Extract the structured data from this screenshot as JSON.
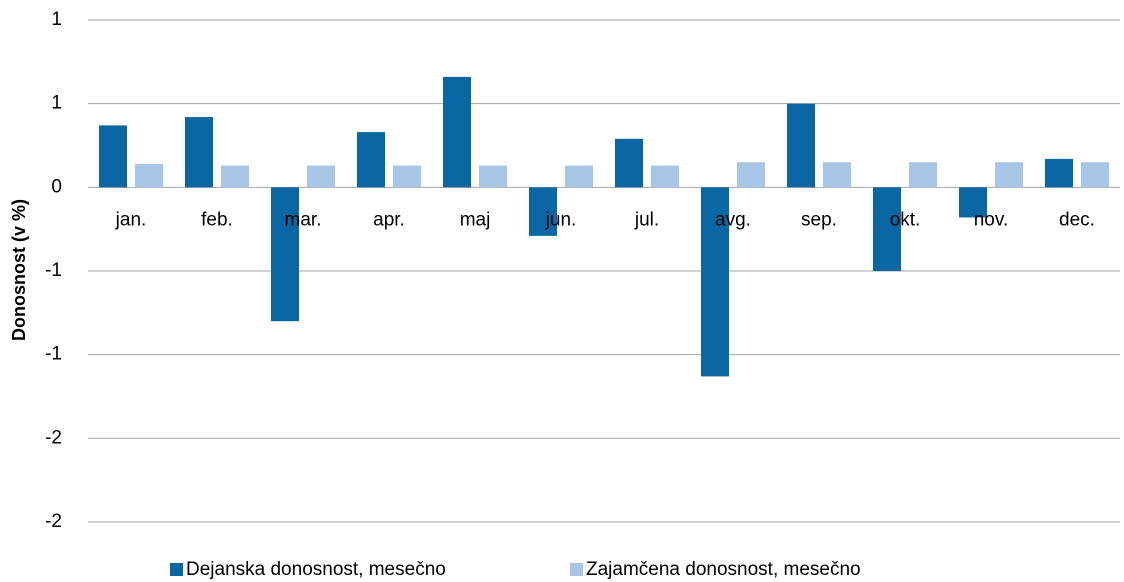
{
  "chart_data": {
    "type": "bar",
    "y_label": "Donosnost (v %)",
    "categories": [
      "jan.",
      "feb.",
      "mar.",
      "apr.",
      "maj",
      "jun.",
      "jul.",
      "avg.",
      "sep.",
      "okt.",
      "nov.",
      "dec."
    ],
    "series": [
      {
        "name": "Dejanska donosnost, mesečno",
        "color": "#0a67a3",
        "values": [
          0.37,
          0.42,
          -0.8,
          0.33,
          0.66,
          -0.29,
          0.29,
          -1.13,
          0.5,
          -0.5,
          -0.18,
          0.17
        ]
      },
      {
        "name": "Zajamčena donosnost, mesečno",
        "color": "#a7c5e5",
        "values": [
          0.14,
          0.13,
          0.13,
          0.13,
          0.13,
          0.13,
          0.13,
          0.15,
          0.15,
          0.15,
          0.15,
          0.15
        ]
      }
    ],
    "ylim": [
      -2,
      1
    ],
    "yticks": [
      1,
      {
        "value": 0.5,
        "label": "1"
      },
      0,
      {
        "value": -0.5,
        "label": "-1"
      },
      -1,
      {
        "value": -1.5,
        "label": "-2"
      },
      -2
    ],
    "grid": true,
    "legend": "bottom"
  }
}
